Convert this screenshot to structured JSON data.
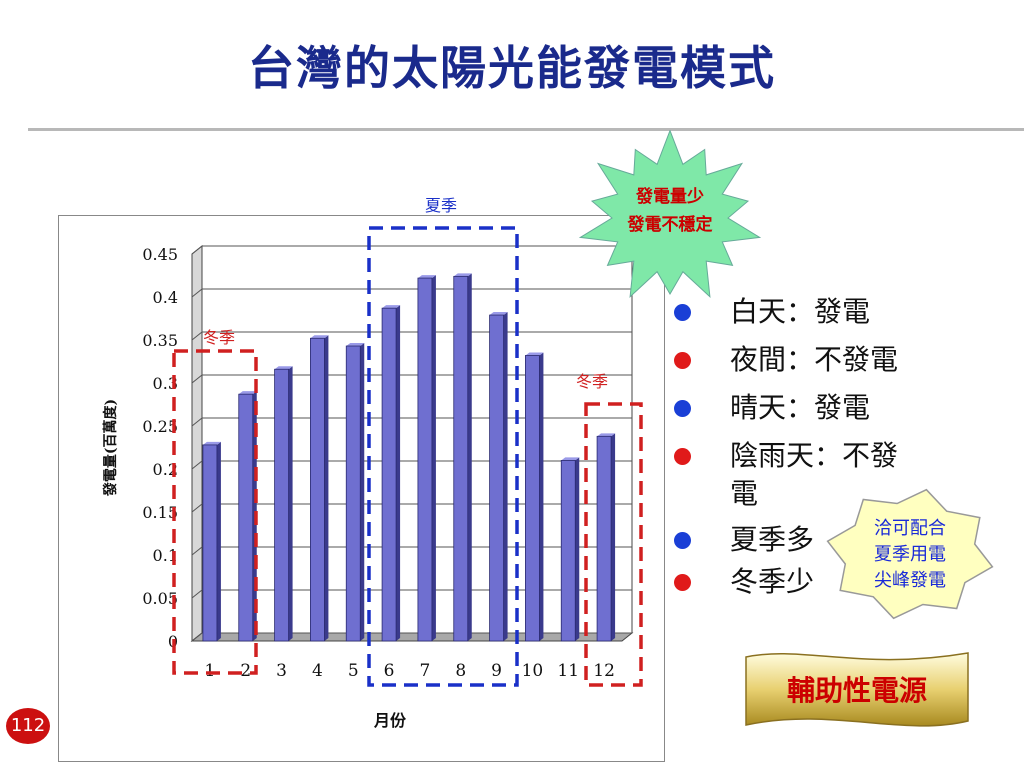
{
  "slide": {
    "title": "台灣的太陽光能發電模式",
    "page_number": "112"
  },
  "chart_data": {
    "type": "bar",
    "categories": [
      "1",
      "2",
      "3",
      "4",
      "5",
      "6",
      "7",
      "8",
      "9",
      "10",
      "11",
      "12"
    ],
    "values": [
      0.228,
      0.287,
      0.316,
      0.352,
      0.343,
      0.387,
      0.422,
      0.424,
      0.379,
      0.332,
      0.21,
      0.238
    ],
    "ylim": [
      0,
      0.45
    ],
    "yticks": [
      "0",
      "0.05",
      "0.1",
      "0.15",
      "0.2",
      "0.25",
      "0.3",
      "0.35",
      "0.4",
      "0.45"
    ],
    "ylabel": "發電量(百萬度)",
    "xlabel": "月份",
    "bar_color": "#6f6fd0",
    "grid": true,
    "annotations": {
      "winter_left": "冬季",
      "summer": "夏季",
      "winter_right": "冬季"
    }
  },
  "starburst": {
    "line1": "發電量少",
    "line2": "發電不穩定",
    "fill": "#7fe8a8",
    "text_color": "#cc0000"
  },
  "legend": [
    {
      "text": "白天：發電",
      "color": "#1a3fd6"
    },
    {
      "text": "夜間：不發電",
      "color": "#e01a1a"
    },
    {
      "text": "晴天：發電",
      "color": "#1a3fd6"
    },
    {
      "text": "陰雨天：不發",
      "text2": "電",
      "color": "#e01a1a"
    },
    {
      "text": "夏季多",
      "color": "#1a3fd6"
    },
    {
      "text": "冬季少",
      "color": "#e01a1a"
    }
  ],
  "badge": {
    "line1": "洽可配合",
    "line2": "夏季用電",
    "line3": "尖峰發電",
    "fill": "#ffffc0",
    "text_color": "#1a2ad8"
  },
  "banner": {
    "text": "輔助性電源",
    "text_color": "#cc0000"
  },
  "colors": {
    "title": "#1a2a8c",
    "winter_box": "#d02020",
    "summer_box": "#1a30c8"
  }
}
